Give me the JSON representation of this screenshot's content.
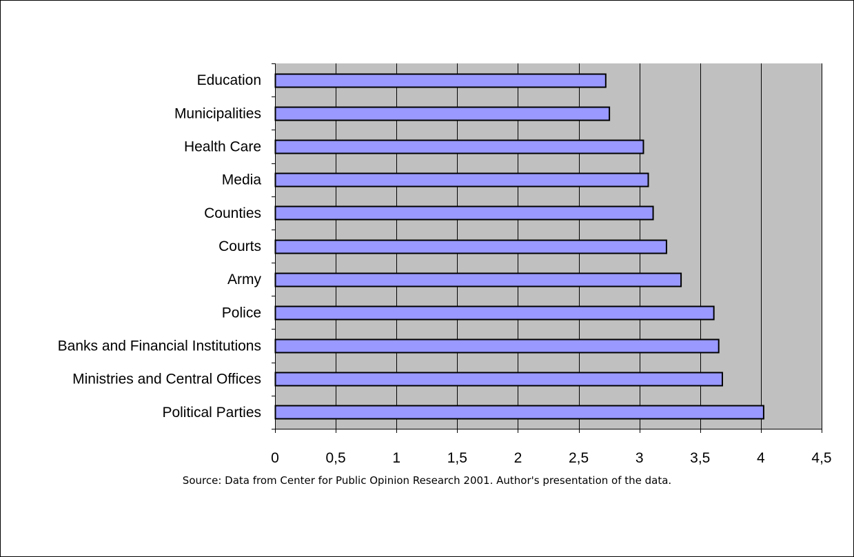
{
  "chart_data": {
    "type": "bar",
    "orientation": "horizontal",
    "categories": [
      "Education",
      "Municipalities",
      "Health Care",
      "Media",
      "Counties",
      "Courts",
      "Army",
      "Police",
      "Banks and Financial Institutions",
      "Ministries and Central Offices",
      "Political Parties"
    ],
    "values": [
      2.72,
      2.75,
      3.03,
      3.07,
      3.11,
      3.22,
      3.34,
      3.61,
      3.65,
      3.68,
      4.02
    ],
    "title": "",
    "xlabel": "",
    "ylabel": "",
    "xlim": [
      0,
      4.5
    ],
    "xticks": [
      "0",
      "0,5",
      "1",
      "1,5",
      "2",
      "2,5",
      "3",
      "3,5",
      "4",
      "4,5"
    ],
    "tick_step": 0.5,
    "grid": "vertical",
    "legend": "none",
    "colors": {
      "bar_fill": "#9999ff",
      "bar_stroke": "#000000",
      "plot_background": "#c0c0c0",
      "gridline": "#000000"
    }
  },
  "source_note": "Source: Data from Center for Public Opinion Research 2001. Author's presentation of the data."
}
